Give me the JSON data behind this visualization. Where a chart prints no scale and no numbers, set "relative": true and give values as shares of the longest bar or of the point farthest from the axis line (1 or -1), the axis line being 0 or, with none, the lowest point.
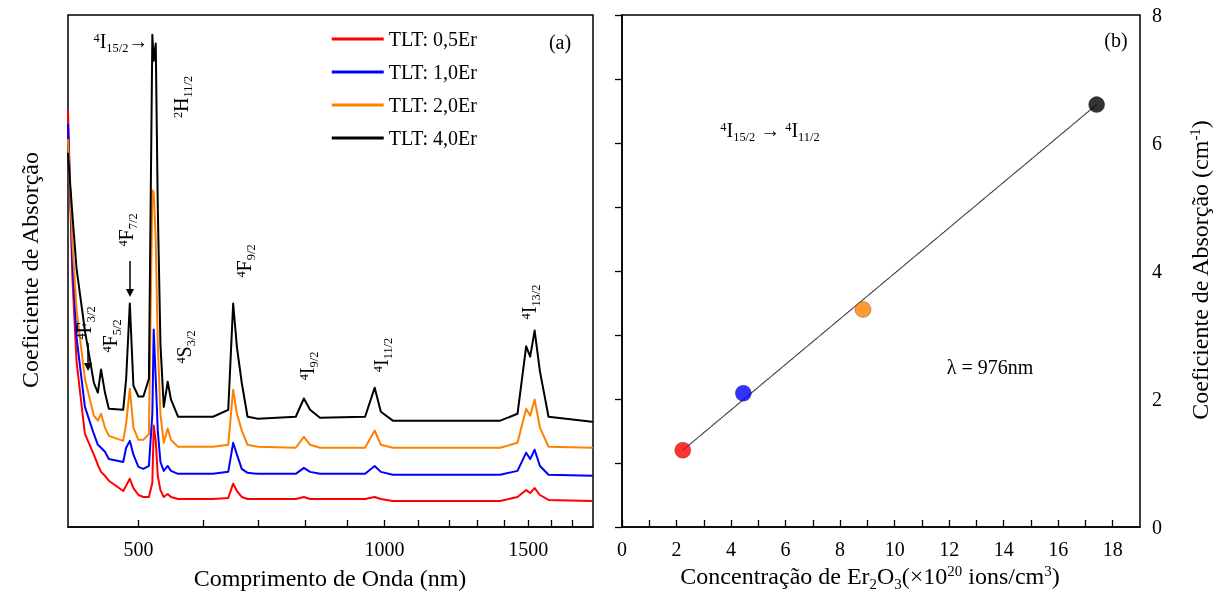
{
  "chart_data": [
    {
      "type": "line",
      "relative": true,
      "log": "x",
      "xlabel": "Comprimento de Onda (nm)",
      "ylabel": "Coeficiente de Absorção",
      "xlim": [
        410,
        1800
      ],
      "xticks": [
        500,
        {
          "value": 600,
          "label": null
        },
        {
          "value": 700,
          "label": null
        },
        {
          "value": 800,
          "label": null
        },
        {
          "value": 900,
          "label": null
        },
        1000,
        {
          "value": 1100,
          "label": null
        },
        {
          "value": 1200,
          "label": null
        },
        {
          "value": 1300,
          "label": null
        },
        {
          "value": 1400,
          "label": null
        },
        1500,
        {
          "value": 1600,
          "label": null
        },
        {
          "value": 1700,
          "label": null
        }
      ],
      "legend": "top right",
      "marker": "none",
      "line_style": "solid",
      "x": [
        410,
        415,
        420,
        430,
        441,
        446,
        450,
        455,
        460,
        479,
        483,
        488,
        493,
        500,
        507,
        515,
        520,
        522,
        525,
        528,
        532,
        537,
        543,
        548,
        559,
        617,
        644,
        653,
        660,
        669,
        680,
        700,
        779,
        797,
        811,
        834,
        947,
        973,
        990,
        1024,
        1386,
        1455,
        1491,
        1508,
        1527,
        1550,
        1588,
        1795
      ],
      "series": [
        {
          "name": "TLT: 0,5Er",
          "color": "#ff0000",
          "values": [
            0.845,
            0.511,
            0.336,
            0.189,
            0.147,
            0.126,
            0.112,
            0.104,
            0.094,
            0.073,
            0.084,
            0.098,
            0.079,
            0.065,
            0.061,
            0.061,
            0.09,
            0.206,
            0.175,
            0.104,
            0.075,
            0.061,
            0.067,
            0.061,
            0.057,
            0.057,
            0.059,
            0.088,
            0.073,
            0.061,
            0.057,
            0.057,
            0.057,
            0.061,
            0.057,
            0.057,
            0.057,
            0.061,
            0.057,
            0.053,
            0.053,
            0.061,
            0.075,
            0.069,
            0.079,
            0.065,
            0.055,
            0.053
          ]
        },
        {
          "name": "TLT: 1,0Er",
          "color": "#0000ff",
          "values": [
            0.817,
            0.546,
            0.385,
            0.244,
            0.189,
            0.167,
            0.161,
            0.153,
            0.138,
            0.132,
            0.161,
            0.175,
            0.147,
            0.122,
            0.118,
            0.124,
            0.23,
            0.401,
            0.301,
            0.196,
            0.132,
            0.114,
            0.124,
            0.114,
            0.108,
            0.108,
            0.112,
            0.171,
            0.147,
            0.118,
            0.11,
            0.108,
            0.108,
            0.12,
            0.112,
            0.108,
            0.108,
            0.124,
            0.112,
            0.106,
            0.106,
            0.114,
            0.151,
            0.138,
            0.157,
            0.124,
            0.106,
            0.104
          ]
        },
        {
          "name": "TLT: 2,0Er",
          "color": "#ff8000",
          "values": [
            0.786,
            0.582,
            0.442,
            0.301,
            0.226,
            0.216,
            0.23,
            0.202,
            0.185,
            0.175,
            0.21,
            0.281,
            0.202,
            0.177,
            0.177,
            0.189,
            0.684,
            0.68,
            0.582,
            0.371,
            0.23,
            0.171,
            0.2,
            0.177,
            0.163,
            0.163,
            0.167,
            0.279,
            0.23,
            0.196,
            0.167,
            0.163,
            0.161,
            0.183,
            0.167,
            0.161,
            0.161,
            0.196,
            0.167,
            0.161,
            0.161,
            0.171,
            0.24,
            0.226,
            0.259,
            0.202,
            0.163,
            0.161
          ]
        },
        {
          "name": "TLT: 4,0Er",
          "color": "#000000",
          "values": [
            0.758,
            0.637,
            0.525,
            0.399,
            0.293,
            0.273,
            0.32,
            0.273,
            0.24,
            0.238,
            0.301,
            0.454,
            0.287,
            0.265,
            0.265,
            0.301,
            1.0,
            0.947,
            0.982,
            0.652,
            0.371,
            0.244,
            0.295,
            0.259,
            0.224,
            0.224,
            0.238,
            0.454,
            0.365,
            0.293,
            0.224,
            0.22,
            0.224,
            0.261,
            0.238,
            0.222,
            0.224,
            0.283,
            0.234,
            0.216,
            0.216,
            0.23,
            0.367,
            0.346,
            0.399,
            0.316,
            0.224,
            0.214
          ]
        }
      ],
      "annotations": [
        "(a)",
        {
          "text": "$^{4}$I$_{15/2}$→",
          "x": 520,
          "y": 1.0
        },
        {
          "text": "$^{2}$H$_{11/2}$",
          "x": 525,
          "y": 0.982
        },
        {
          "text": "$^{4}$F$_{3/2}$",
          "x": 441,
          "y": 0.293
        },
        {
          "text": "$^{4}$F$_{5/2}$",
          "x": 450,
          "y": 0.32
        },
        {
          "text": "$^{4}$F$_{7/2}$",
          "x": 488,
          "y": 0.454
        },
        {
          "text": "$^{4}$S$_{3/2}$",
          "x": 543,
          "y": 0.295
        },
        {
          "text": "$^{4}$F$_{9/2}$",
          "x": 653,
          "y": 0.454
        },
        {
          "text": "$^{4}$I$_{9/2}$",
          "x": 797,
          "y": 0.261
        },
        {
          "text": "$^{4}$I$_{11/2}$",
          "x": 973,
          "y": 0.283
        },
        {
          "text": "$^{4}$I$_{13/2}$",
          "x": 1508,
          "y": 0.346
        }
      ]
    },
    {
      "type": "scatter",
      "xlabel": "Concentração de Er$_{2}$O$_{3}$(×10$^{20}$ ions/cm$^{3}$)",
      "ylabel": "Coeficiente de Absorção (cm$^{-1}$)",
      "xlim": [
        0,
        19
      ],
      "xticks": [
        0,
        {
          "value": 1,
          "label": null
        },
        2,
        {
          "value": 3,
          "label": null
        },
        4,
        {
          "value": 5,
          "label": null
        },
        6,
        {
          "value": 7,
          "label": null
        },
        8,
        {
          "value": 9,
          "label": null
        },
        10,
        {
          "value": 11,
          "label": null
        },
        12,
        {
          "value": 13,
          "label": null
        },
        14,
        {
          "value": 15,
          "label": null
        },
        16,
        {
          "value": 17,
          "label": null
        },
        18
      ],
      "ylim": [
        0,
        8
      ],
      "yticks": [
        0,
        {
          "value": 1,
          "label": null
        },
        2,
        {
          "value": 3,
          "label": null
        },
        4,
        {
          "value": 5,
          "label": null
        },
        6,
        {
          "value": 7,
          "label": null
        },
        8
      ],
      "marker": "circle",
      "series": [
        {
          "x": [
            2.23,
            4.45,
            8.84,
            17.41
          ],
          "values": [
            1.2,
            2.09,
            3.4,
            6.6
          ],
          "colors": [
            "#ff0000",
            "#0000ff",
            "#ff8000",
            "#000000"
          ]
        },
        {
          "type": "line",
          "x": [
            2.23,
            17.41
          ],
          "values": [
            1.2,
            6.6
          ],
          "color": "#404040",
          "line_style": "dotted",
          "marker": "none"
        }
      ],
      "annotations": [
        "(b)",
        "$^{4}$I$_{15/2}$ → $^{4}$I$_{11/2}$",
        "λ = 976nm"
      ]
    }
  ]
}
